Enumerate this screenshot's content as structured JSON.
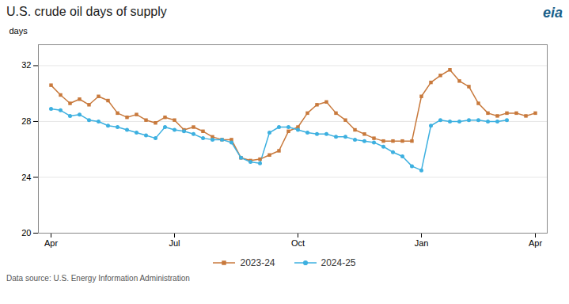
{
  "chart_data": {
    "type": "line",
    "title": "U.S. crude oil days of supply",
    "ylabel": "days",
    "source": "Data source: U.S. Energy Information Administration",
    "annotations": [
      "eia"
    ],
    "categories": [
      "Apr",
      null,
      null,
      null,
      null,
      null,
      null,
      null,
      null,
      null,
      null,
      null,
      null,
      "Jul",
      null,
      null,
      null,
      null,
      null,
      null,
      null,
      null,
      null,
      null,
      null,
      null,
      "Oct",
      null,
      null,
      null,
      null,
      null,
      null,
      null,
      null,
      null,
      null,
      null,
      null,
      "Jan",
      null,
      null,
      null,
      null,
      null,
      null,
      null,
      null,
      null,
      null,
      null,
      "Apr"
    ],
    "series": [
      {
        "name": "2023-24",
        "color": "#c8793c",
        "marker": "square",
        "values": [
          30.6,
          29.9,
          29.3,
          29.6,
          29.2,
          29.8,
          29.5,
          28.6,
          28.3,
          28.5,
          28.1,
          27.9,
          28.3,
          28.1,
          27.4,
          27.6,
          27.3,
          26.9,
          26.7,
          26.7,
          25.4,
          25.2,
          25.3,
          25.6,
          25.9,
          27.3,
          27.6,
          28.6,
          29.2,
          29.4,
          28.6,
          28.1,
          27.4,
          27.1,
          26.8,
          26.6,
          26.6,
          26.6,
          26.6,
          29.8,
          30.8,
          31.3,
          31.7,
          30.9,
          30.5,
          29.3,
          28.6,
          28.4,
          28.6,
          28.6,
          28.4,
          28.6
        ]
      },
      {
        "name": "2024-25",
        "color": "#3db0e0",
        "marker": "circle",
        "values": [
          28.9,
          28.8,
          28.4,
          28.5,
          28.1,
          28.0,
          27.7,
          27.6,
          27.4,
          27.2,
          27.0,
          26.8,
          27.6,
          27.4,
          27.3,
          27.1,
          26.8,
          26.7,
          26.7,
          26.5,
          25.4,
          25.1,
          25.0,
          27.2,
          27.6,
          27.6,
          27.4,
          27.2,
          27.1,
          27.1,
          26.9,
          26.9,
          26.7,
          26.6,
          26.5,
          26.2,
          25.8,
          25.5,
          24.8,
          24.5,
          27.7,
          28.1,
          28.0,
          28.0,
          28.1,
          28.1,
          28.0,
          28.0,
          28.1,
          null,
          null,
          null
        ]
      }
    ],
    "ylim": [
      20,
      33.5
    ],
    "yticks": [
      20,
      24,
      28,
      32
    ],
    "grid": true,
    "legend": "bottom"
  }
}
